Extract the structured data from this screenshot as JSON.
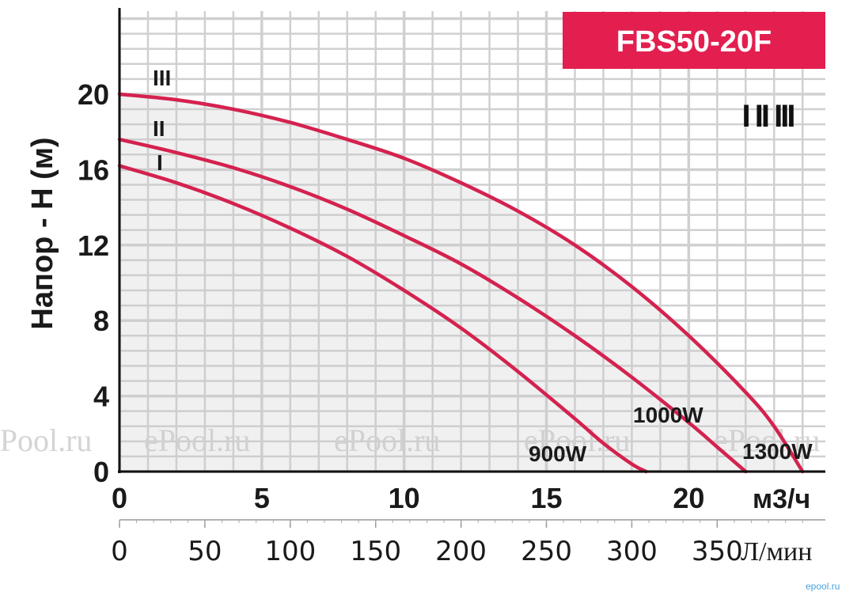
{
  "chart_data": {
    "type": "line",
    "title": "FBS50-20F",
    "ylabel": "Напор - H (м)",
    "xlabel": "м3/ч",
    "xlabel_secondary": "Л/мин",
    "xlim": [
      0,
      24.8
    ],
    "ylim": [
      0,
      24.4
    ],
    "y_ticks": [
      "0",
      "4",
      "8",
      "12",
      "16",
      "20"
    ],
    "x_ticks": [
      "0",
      "5",
      "10",
      "15",
      "20"
    ],
    "x_ticks_secondary": [
      "0",
      "50",
      "100",
      "150",
      "200",
      "250",
      "300",
      "350"
    ],
    "speed_legend": "I  II  III",
    "grid": true,
    "series": [
      {
        "name": "I",
        "power": "900W",
        "color": "#d4224f",
        "x": [
          0,
          2,
          4,
          6,
          8,
          10,
          12,
          14,
          16,
          17,
          18,
          18.5
        ],
        "y": [
          16.2,
          15.3,
          14.2,
          12.9,
          11.4,
          9.6,
          7.6,
          5.3,
          2.8,
          1.5,
          0.4,
          0
        ]
      },
      {
        "name": "II",
        "power": "1000W",
        "color": "#d4224f",
        "x": [
          0,
          2,
          4,
          6,
          8,
          10,
          12,
          14,
          16,
          18,
          20,
          21,
          22
        ],
        "y": [
          17.6,
          16.9,
          16.1,
          15.1,
          13.9,
          12.5,
          11.0,
          9.2,
          7.2,
          5.0,
          2.6,
          1.3,
          0
        ]
      },
      {
        "name": "III",
        "power": "1300W",
        "color": "#d4224f",
        "x": [
          0,
          2,
          4,
          6,
          8,
          10,
          12,
          14,
          16,
          18,
          20,
          22,
          23,
          24
        ],
        "y": [
          20.0,
          19.7,
          19.2,
          18.5,
          17.6,
          16.6,
          15.3,
          13.8,
          12.0,
          9.8,
          7.2,
          4.2,
          2.4,
          0
        ]
      }
    ]
  },
  "watermarks": [
    "ePool.ru",
    "ePool.ru",
    "ePool.ru",
    "ePool.ru",
    "ePool.ru"
  ],
  "corner_mark": "epool.ru"
}
